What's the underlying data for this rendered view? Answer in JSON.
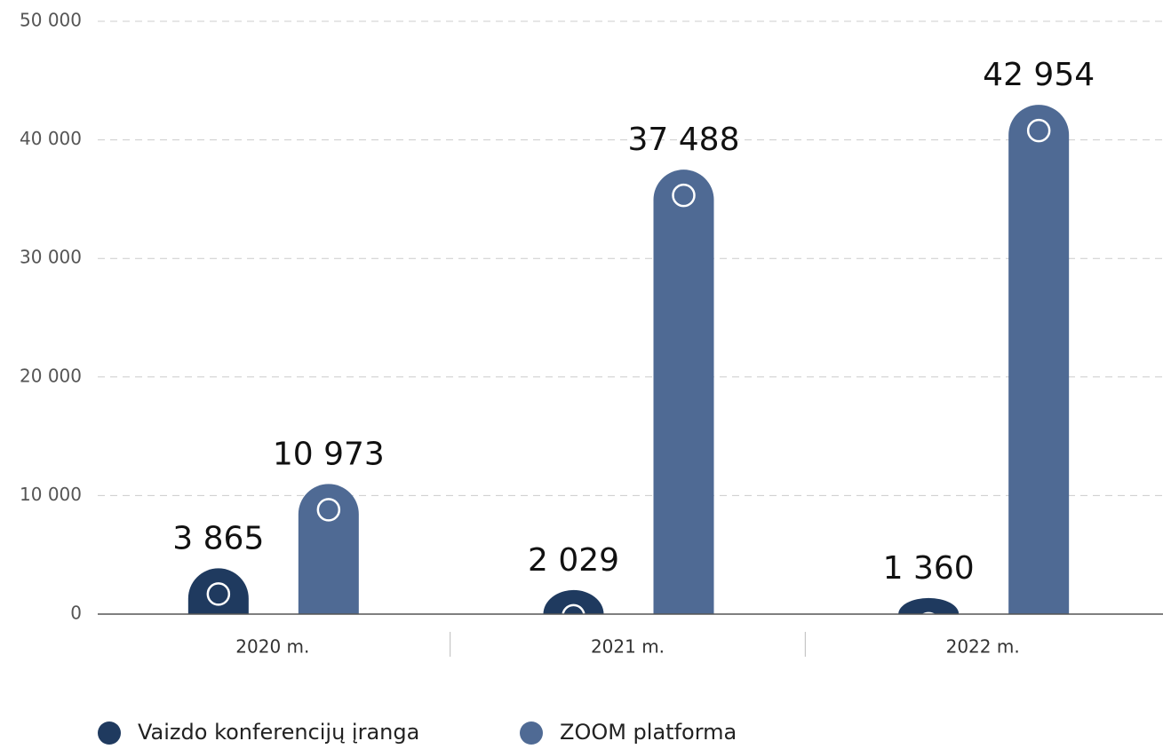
{
  "chart_data": {
    "type": "bar",
    "categories": [
      "2020 m.",
      "2021 m.",
      "2022 m."
    ],
    "series": [
      {
        "name": "Vaizdo konferencijų įranga",
        "color": "#1f3a5f",
        "values": [
          3865,
          2029,
          1360
        ],
        "value_labels": [
          "3 865",
          "2 029",
          "1 360"
        ]
      },
      {
        "name": "ZOOM platforma",
        "color": "#4f6a94",
        "values": [
          10973,
          37488,
          42954
        ],
        "value_labels": [
          "10 973",
          "37 488",
          "42 954"
        ]
      }
    ],
    "ylim": [
      0,
      50000
    ],
    "yticks": [
      0,
      {
        "value": 10000,
        "label": "10 000"
      },
      {
        "value": 20000,
        "label": "20 000"
      },
      {
        "value": 30000,
        "label": "30 000"
      },
      {
        "value": 40000,
        "label": "40 000"
      },
      {
        "value": 50000,
        "label": "50 000"
      }
    ],
    "grid": true
  }
}
